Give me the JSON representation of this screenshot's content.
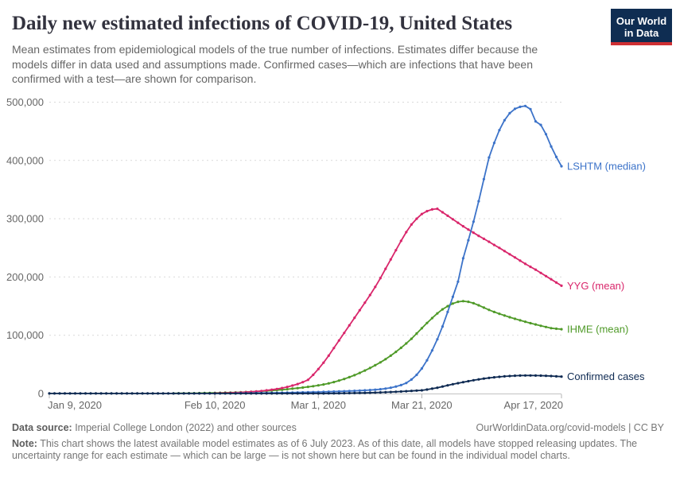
{
  "header": {
    "title": "Daily new estimated infections of COVID-19, United States",
    "subtitle": "Mean estimates from epidemiological models of the true number of infections. Estimates differ because the models differ in data used and assumptions made. Confirmed cases—which are infections that have been confirmed with a test—are shown for comparison.",
    "logo_line1": "Our World",
    "logo_line2": "in Data",
    "logo_bg_color": "#0f2d52",
    "logo_bar_color": "#cf3034"
  },
  "chart_data": {
    "type": "line",
    "title": "Daily new estimated infections of COVID-19, United States",
    "xlabel": "",
    "ylabel": "",
    "grid": "horizontal-dashed",
    "legend_position": "right-end-labels",
    "x_axis": {
      "start_label": "Jan 9, 2020",
      "end_label": "Apr 17, 2020",
      "total_days": 99,
      "ticks": [
        {
          "label": "Jan 9, 2020",
          "day": 0
        },
        {
          "label": "Feb 10, 2020",
          "day": 32
        },
        {
          "label": "Mar 1, 2020",
          "day": 52
        },
        {
          "label": "Mar 21, 2020",
          "day": 72
        },
        {
          "label": "Apr 17, 2020",
          "day": 99
        }
      ]
    },
    "y_axis": {
      "min": 0,
      "max": 500000,
      "ticks": [
        0,
        100000,
        200000,
        300000,
        400000,
        500000
      ]
    },
    "series": [
      {
        "name": "IHME",
        "label": "IHME (mean)",
        "color": "#4f9a28",
        "start_day": 24,
        "values": [
          300,
          350,
          420,
          500,
          600,
          700,
          820,
          950,
          1100,
          1280,
          1480,
          1700,
          1950,
          2250,
          2600,
          3000,
          3450,
          3950,
          4500,
          5100,
          5800,
          6600,
          7400,
          8300,
          9300,
          10300,
          11400,
          12600,
          14000,
          15600,
          17500,
          19700,
          22200,
          25000,
          28100,
          31500,
          35300,
          39400,
          43800,
          48500,
          53500,
          59000,
          65000,
          71500,
          78500,
          86000,
          94000,
          103000,
          112000,
          121000,
          129500,
          137500,
          144500,
          150000,
          154500,
          157500,
          158500,
          157500,
          155000,
          151500,
          147500,
          143500,
          140000,
          136800,
          133800,
          131000,
          128300,
          125700,
          123200,
          120800,
          118500,
          116300,
          114200,
          112200,
          111200,
          110400
        ]
      },
      {
        "name": "YYG",
        "label": "YYG (mean)",
        "color": "#d9266b",
        "start_day": 32,
        "values": [
          500,
          650,
          850,
          1100,
          1400,
          1800,
          2300,
          2900,
          3600,
          4400,
          5400,
          6500,
          7800,
          9400,
          11300,
          13600,
          16300,
          19500,
          23500,
          32000,
          42000,
          53000,
          65000,
          78000,
          91000,
          104000,
          117000,
          130000,
          143000,
          156000,
          169000,
          183000,
          198000,
          214000,
          230000,
          246000,
          262000,
          277000,
          290000,
          300000,
          308000,
          313000,
          316000,
          317000,
          311000,
          305000,
          299000,
          293000,
          287000,
          281500,
          276000,
          270500,
          265500,
          260500,
          255000,
          250000,
          244500,
          239000,
          233500,
          228000,
          222500,
          217500,
          212500,
          207000,
          201500,
          196000,
          190500,
          185000
        ]
      },
      {
        "name": "LSHTM",
        "label": "LSHTM (median)",
        "color": "#3c73c9",
        "start_day": 36,
        "values": [
          400,
          500,
          600,
          700,
          800,
          900,
          1000,
          1100,
          1200,
          1350,
          1500,
          1650,
          1800,
          2000,
          2200,
          2400,
          2600,
          2850,
          3100,
          3400,
          3700,
          4000,
          4350,
          4700,
          5100,
          5500,
          6000,
          6600,
          7400,
          8500,
          10000,
          12000,
          14500,
          18000,
          24000,
          32000,
          43000,
          57000,
          74000,
          93000,
          115000,
          140000,
          166000,
          192000,
          232000,
          263000,
          295000,
          330000,
          368000,
          405000,
          430000,
          452000,
          469000,
          481000,
          488500,
          492000,
          493500,
          488000,
          467000,
          461000,
          445000,
          424000,
          406000,
          390000
        ]
      },
      {
        "name": "Confirmed cases",
        "label": "Confirmed cases",
        "color": "#0e2a52",
        "start_day": 0,
        "values": [
          100,
          100,
          100,
          100,
          100,
          100,
          100,
          100,
          100,
          100,
          100,
          100,
          100,
          100,
          100,
          100,
          100,
          100,
          100,
          100,
          100,
          100,
          100,
          100,
          100,
          100,
          100,
          100,
          100,
          100,
          100,
          100,
          100,
          100,
          100,
          100,
          100,
          100,
          100,
          100,
          100,
          100,
          100,
          100,
          100,
          100,
          100,
          100,
          100,
          100,
          120,
          135,
          150,
          200,
          250,
          320,
          400,
          500,
          620,
          760,
          920,
          1100,
          1320,
          1570,
          1860,
          2190,
          2560,
          2980,
          3450,
          3970,
          4500,
          5000,
          5500,
          6800,
          8300,
          10000,
          12000,
          14000,
          16000,
          17800,
          19500,
          21200,
          22800,
          24300,
          25600,
          26800,
          27800,
          28700,
          29400,
          30000,
          30500,
          30800,
          31000,
          31000,
          30900,
          30700,
          30400,
          30000,
          29500,
          29000
        ]
      }
    ]
  },
  "footer": {
    "datasource_label": "Data source:",
    "datasource_text": " Imperial College London (2022) and other sources",
    "link": "OurWorldinData.org/covid-models",
    "separator": " | ",
    "license": "CC BY",
    "note_label": "Note:",
    "note_text": " This chart shows the latest available model estimates as of 6 July 2023. As of this date, all models have stopped releasing updates. The uncertainty range for each estimate — which can be large — is not shown here but can be found in the individual model charts."
  }
}
